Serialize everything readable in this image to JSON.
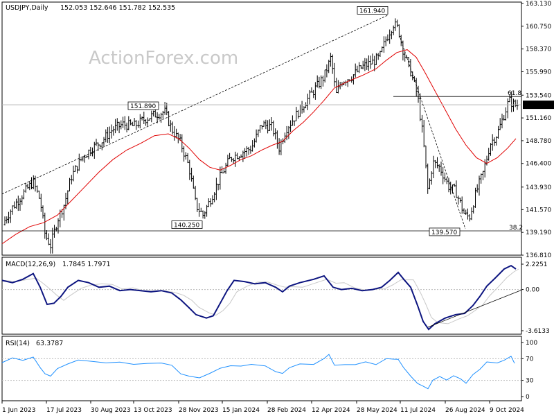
{
  "chart_data": [
    {
      "type": "candlestick",
      "header": {
        "symbol": "USDJPY,Daily",
        "values": "152.053 152.646 151.782 152.535"
      },
      "watermark": "ActionForex.com",
      "x_tick_labels": [
        "1 Jun 2023",
        "17 Jul 2023",
        "30 Aug 2023",
        "13 Oct 2023",
        "28 Nov 2023",
        "15 Jan 2024",
        "28 Feb 2024",
        "12 Apr 2024",
        "28 May 2024",
        "11 Jul 2024",
        "26 Aug 2024",
        "9 Oct 2024"
      ],
      "ylim": [
        136.81,
        163.13
      ],
      "y_tick_labels": [
        "163.130",
        "160.750",
        "158.370",
        "155.990",
        "153.540",
        "151.160",
        "148.780",
        "146.400",
        "143.930",
        "141.570",
        "139.190",
        "136.810"
      ],
      "y_ticks": [
        163.13,
        160.75,
        158.37,
        155.99,
        153.54,
        151.16,
        148.78,
        146.4,
        143.93,
        141.57,
        139.19,
        136.81
      ],
      "current_price": {
        "label": "152.535",
        "value": 152.535
      },
      "annotations": [
        {
          "label": "151.890",
          "value": 151.89
        },
        {
          "label": "161.940",
          "value": 161.94
        },
        {
          "label": "140.250",
          "value": 140.25
        },
        {
          "label": "139.570",
          "value": 139.57
        }
      ],
      "fib_levels": [
        {
          "label": "61.8",
          "value": 153.4
        },
        {
          "label": "38.2",
          "value": 139.35
        }
      ],
      "series": [
        {
          "name": "price",
          "indicator": "close",
          "color": "#000000"
        },
        {
          "name": "moving-average",
          "color": "#e00000"
        }
      ]
    },
    {
      "type": "line",
      "header": {
        "name": "MACD(12,26,9)",
        "values": "1.7845 1.7971"
      },
      "ylim": [
        -3.6133,
        2.2251
      ],
      "y_tick_labels": [
        "2.2251",
        "0.00",
        "-3.6133"
      ],
      "y_ticks": [
        2.2251,
        0,
        -3.6133
      ],
      "series": [
        {
          "name": "macd",
          "color": "#0d1580"
        },
        {
          "name": "signal",
          "color": "#c8c8c8"
        }
      ]
    },
    {
      "type": "line",
      "header": {
        "name": "RSI(14)",
        "values": "63.3787"
      },
      "ylim": [
        0,
        100
      ],
      "y_tick_labels": [
        "100",
        "70",
        "30",
        "0"
      ],
      "y_ticks": [
        100,
        70,
        30,
        0
      ],
      "series": [
        {
          "name": "rsi",
          "color": "#1e90ff"
        }
      ]
    }
  ]
}
